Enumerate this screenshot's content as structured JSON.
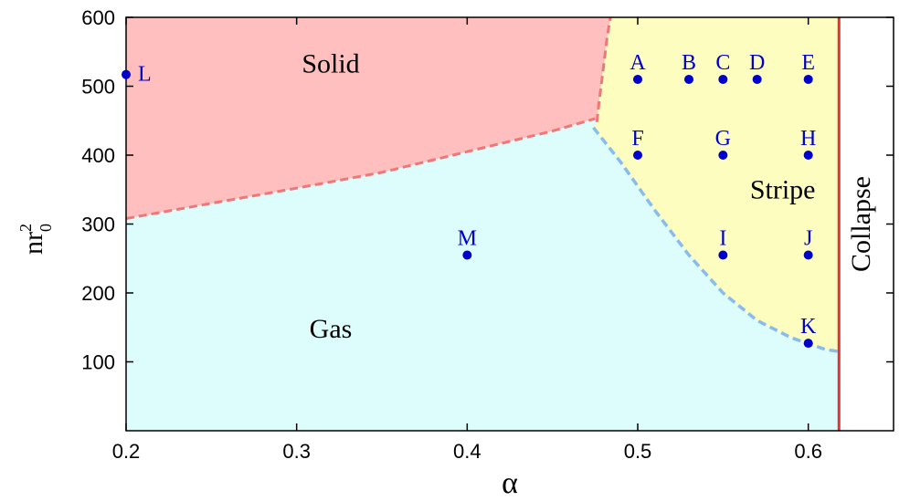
{
  "chart_data": {
    "type": "scatter",
    "xlabel": "α",
    "ylabel": "nr",
    "ylabel_superscript": "2",
    "ylabel_subscript": "0",
    "xlim": [
      0.2,
      0.65
    ],
    "ylim": [
      0,
      600
    ],
    "x_ticks": [
      0.2,
      0.3,
      0.4,
      0.5,
      0.6
    ],
    "x_tick_labels": [
      "0.2",
      "0.3",
      "0.4",
      "0.5",
      "0.6"
    ],
    "y_ticks": [
      100,
      200,
      300,
      400,
      500,
      600
    ],
    "y_tick_labels": [
      "100",
      "200",
      "300",
      "400",
      "500",
      "600"
    ],
    "grid": false,
    "regions": [
      {
        "label": "Solid",
        "color": "#ffbfbf",
        "label_at": [
          0.32,
          520
        ]
      },
      {
        "label": "Gas",
        "color": "#ddfdfd",
        "label_at": [
          0.32,
          135
        ]
      },
      {
        "label": "Stripe",
        "color": "#fdfdbf",
        "label_at": [
          0.585,
          337
        ]
      },
      {
        "label": "Collapse",
        "color": "#ffffff",
        "label_at": [
          0.636,
          300
        ],
        "rotated": true
      }
    ],
    "boundaries": {
      "solid_gas": {
        "color": "#ee7777",
        "x": [
          0.2,
          0.25,
          0.3,
          0.35,
          0.4,
          0.45,
          0.475
        ],
        "y": [
          308,
          330,
          352,
          375,
          405,
          435,
          453
        ]
      },
      "solid_stripe": {
        "color": "#ee7777",
        "x": [
          0.476,
          0.478,
          0.48,
          0.482,
          0.484
        ],
        "y": [
          448,
          490,
          530,
          570,
          600
        ]
      },
      "gas_stripe": {
        "color": "#88bbee",
        "x": [
          0.474,
          0.49,
          0.51,
          0.53,
          0.55,
          0.57,
          0.59,
          0.61,
          0.618
        ],
        "y": [
          440,
          390,
          320,
          255,
          200,
          160,
          135,
          118,
          115
        ]
      },
      "collapse_line": {
        "color": "#dd3333",
        "x": 0.618
      }
    },
    "points": [
      {
        "label": "A",
        "x": 0.5,
        "y": 510
      },
      {
        "label": "B",
        "x": 0.53,
        "y": 510
      },
      {
        "label": "C",
        "x": 0.55,
        "y": 510
      },
      {
        "label": "D",
        "x": 0.57,
        "y": 510
      },
      {
        "label": "E",
        "x": 0.6,
        "y": 510
      },
      {
        "label": "F",
        "x": 0.5,
        "y": 400
      },
      {
        "label": "G",
        "x": 0.55,
        "y": 400
      },
      {
        "label": "H",
        "x": 0.6,
        "y": 400
      },
      {
        "label": "I",
        "x": 0.55,
        "y": 255
      },
      {
        "label": "J",
        "x": 0.6,
        "y": 255
      },
      {
        "label": "K",
        "x": 0.6,
        "y": 127
      },
      {
        "label": "L",
        "x": 0.2,
        "y": 517
      },
      {
        "label": "M",
        "x": 0.4,
        "y": 255
      }
    ],
    "point_color": "#0000cc"
  }
}
